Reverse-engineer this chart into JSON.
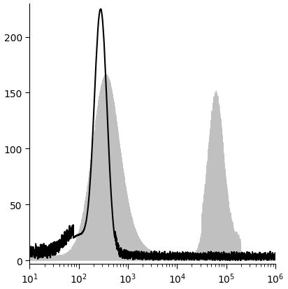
{
  "xlim": [
    10,
    1000000
  ],
  "ylim": [
    -3,
    230
  ],
  "yticks": [
    0,
    50,
    100,
    150,
    200
  ],
  "background_color": "#ffffff",
  "line_color": "#000000",
  "fill_color": "#c0c0c0",
  "fill_alpha": 1.0,
  "line_width": 1.5,
  "seed": 77
}
